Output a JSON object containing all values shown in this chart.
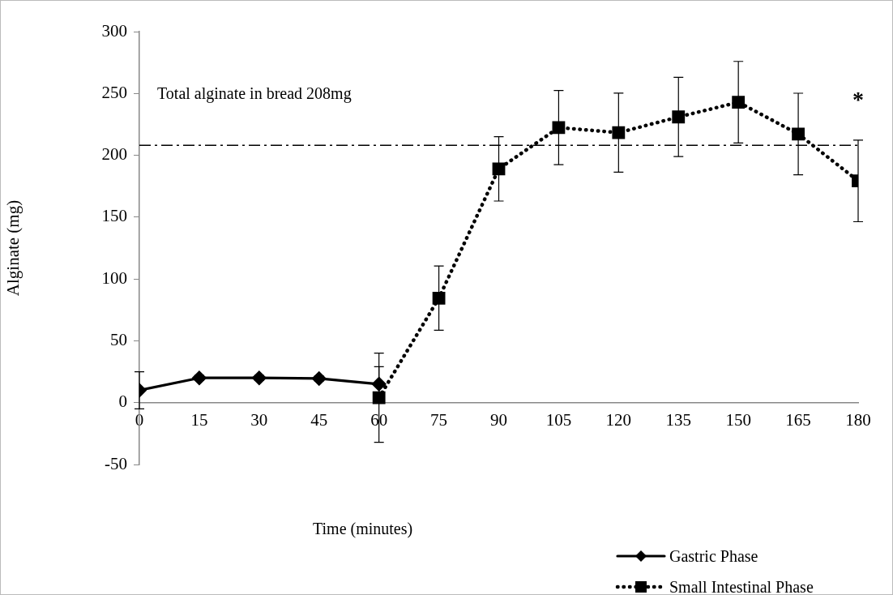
{
  "chart_data": {
    "type": "line",
    "xlabel": "Time (minutes)",
    "ylabel": "Alginate (mg)",
    "xlim": [
      0,
      180
    ],
    "xticks": [
      0,
      15,
      30,
      45,
      60,
      75,
      90,
      105,
      120,
      135,
      150,
      165,
      180
    ],
    "ylim": [
      -50,
      300
    ],
    "yticks": [
      -50,
      0,
      50,
      100,
      150,
      200,
      250,
      300
    ],
    "grid": false,
    "legend": "bottom right",
    "series": [
      {
        "name": "Gastric Phase",
        "color": "#000000",
        "marker": "diamond",
        "line_style": "solid",
        "x": [
          0,
          15,
          30,
          45,
          60
        ],
        "values": [
          10,
          20,
          20,
          19.5,
          15
        ],
        "errors": [
          15,
          2,
          2,
          2,
          14
        ]
      },
      {
        "name": "Small Intestinal Phase",
        "color": "#000000",
        "marker": "square",
        "line_style": "dotted",
        "x": [
          60,
          75,
          90,
          105,
          120,
          135,
          150,
          165,
          180
        ],
        "values": [
          4,
          84.5,
          189,
          222.4,
          218.3,
          231,
          242.9,
          217.2,
          179.3
        ],
        "errors": [
          36,
          26,
          26,
          30,
          32,
          32,
          33,
          33,
          33
        ]
      }
    ],
    "ref_lines": [
      {
        "axis": "y",
        "value": 208,
        "label": "Total alginate in bread 208mg",
        "line_style": "dashdot",
        "color": "#000000"
      }
    ],
    "annotations": [
      "*"
    ]
  }
}
